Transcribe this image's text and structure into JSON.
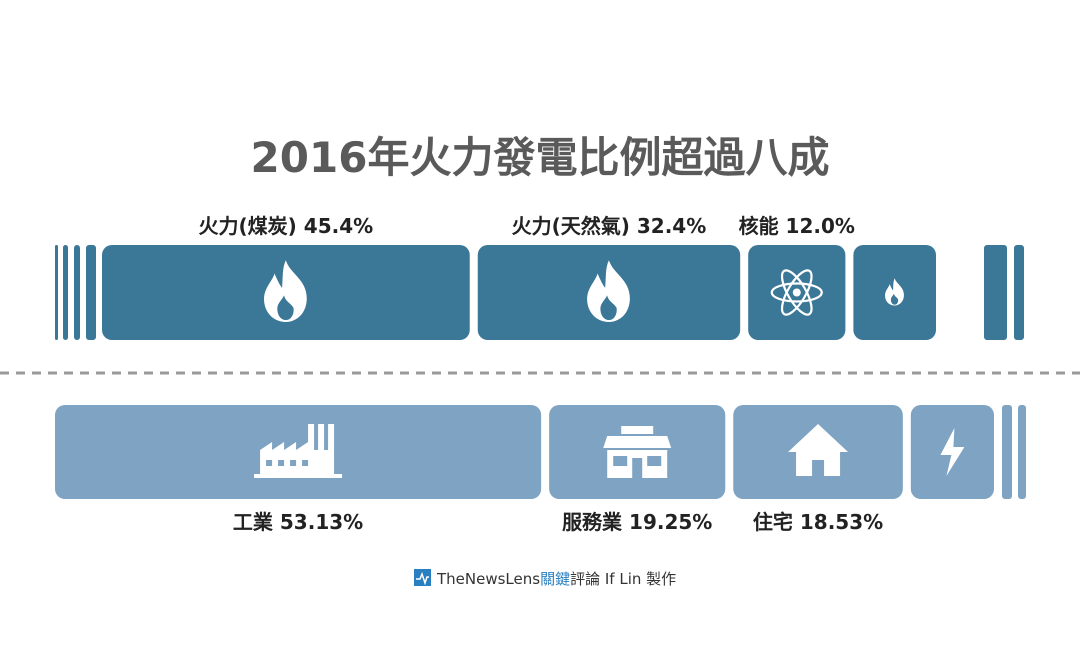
{
  "title": "2016年火力發電比例超過八成",
  "colors": {
    "supply": "#3b7797",
    "demand": "#7fa3c2",
    "divider": "#9a9a9a",
    "icon": "#ffffff",
    "brand": "#2a7fc0"
  },
  "chart_data": [
    {
      "type": "bar",
      "orientation": "stacked-horizontal",
      "categories": [
        "火力(煤炭)",
        "火力(天然氣)",
        "核能"
      ],
      "values": [
        45.4,
        32.4,
        12.0
      ],
      "unit": "%",
      "labels": [
        "火力(煤炭) 45.4%",
        "火力(天然氣) 32.4%",
        "核能 12.0%"
      ],
      "icons": [
        "flame-icon",
        "flame-icon",
        "atom-icon",
        "flame-icon"
      ]
    },
    {
      "type": "bar",
      "orientation": "stacked-horizontal",
      "categories": [
        "工業",
        "服務業",
        "住宅"
      ],
      "values": [
        53.13,
        19.25,
        18.53
      ],
      "unit": "%",
      "labels": [
        "工業 53.13%",
        "服務業 19.25%",
        "住宅 18.53%"
      ],
      "icons": [
        "factory-icon",
        "shop-icon",
        "house-icon",
        "lightning-icon"
      ]
    }
  ],
  "credit": {
    "brand": "TheNewsLens",
    "brand_zh": "關鍵",
    "rest": "評論 If Lin 製作"
  }
}
